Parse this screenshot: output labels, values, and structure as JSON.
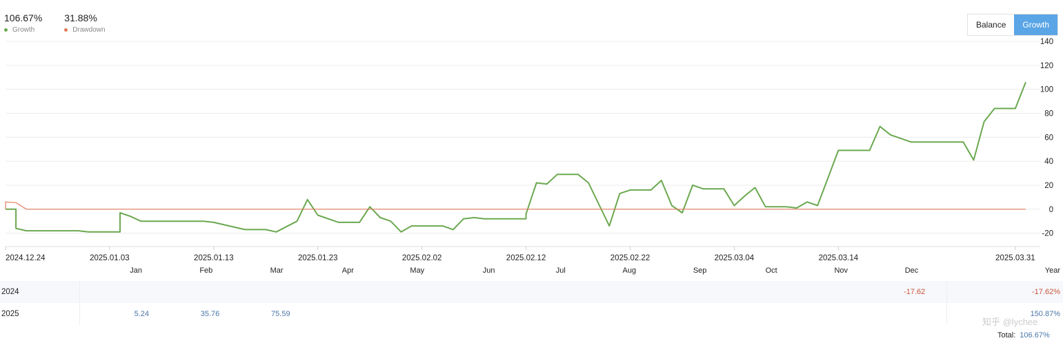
{
  "stats": [
    {
      "value": "106.67%",
      "label": "Growth",
      "color": "#6aa84f"
    },
    {
      "value": "31.88%",
      "label": "Drawdown",
      "color": "#e07b5a"
    }
  ],
  "toggle": {
    "balance": "Balance",
    "growth": "Growth",
    "active": "growth",
    "accent": "#5aa5e6"
  },
  "chart_data": {
    "type": "line",
    "title": "",
    "xlabel": "",
    "ylabel": "",
    "ylim": [
      -30,
      140
    ],
    "yticks": [
      140,
      120,
      100,
      80,
      60,
      40,
      20,
      0,
      -20
    ],
    "xtick_labels": [
      "2024.12.24",
      "2025.01.03",
      "2025.01.13",
      "2025.01.23",
      "2025.02.02",
      "2025.02.12",
      "2025.02.22",
      "2025.03.04",
      "2025.03.14",
      "2025.03.31"
    ],
    "xlim": [
      "2024.12.24",
      "2025.04.01"
    ],
    "grid": true,
    "series": [
      {
        "color": "#6aa84f",
        "points": [
          [
            "2024.12.24",
            0
          ],
          [
            "2024.12.25",
            0
          ],
          [
            "2024.12.25",
            -16
          ],
          [
            "2024.12.26",
            -18
          ],
          [
            "2024.12.31",
            -18
          ],
          [
            "2025.01.01",
            -19
          ],
          [
            "2025.01.04",
            -19
          ],
          [
            "2025.01.04",
            -3
          ],
          [
            "2025.01.05",
            -6
          ],
          [
            "2025.01.06",
            -10
          ],
          [
            "2025.01.12",
            -10
          ],
          [
            "2025.01.13",
            -11
          ],
          [
            "2025.01.15",
            -15
          ],
          [
            "2025.01.16",
            -17
          ],
          [
            "2025.01.18",
            -17
          ],
          [
            "2025.01.19",
            -19
          ],
          [
            "2025.01.21",
            -10
          ],
          [
            "2025.01.22",
            8
          ],
          [
            "2025.01.23",
            -5
          ],
          [
            "2025.01.25",
            -11
          ],
          [
            "2025.01.27",
            -11
          ],
          [
            "2025.01.28",
            2
          ],
          [
            "2025.01.29",
            -7
          ],
          [
            "2025.01.30",
            -10
          ],
          [
            "2025.01.31",
            -19
          ],
          [
            "2025.02.01",
            -14
          ],
          [
            "2025.02.02",
            -14
          ],
          [
            "2025.02.04",
            -14
          ],
          [
            "2025.02.05",
            -17
          ],
          [
            "2025.02.06",
            -8
          ],
          [
            "2025.02.07",
            -7
          ],
          [
            "2025.02.08",
            -8
          ],
          [
            "2025.02.11",
            -8
          ],
          [
            "2025.02.12",
            -8
          ],
          [
            "2025.02.12",
            -4
          ],
          [
            "2025.02.13",
            22
          ],
          [
            "2025.02.14",
            21
          ],
          [
            "2025.02.15",
            29
          ],
          [
            "2025.02.17",
            29
          ],
          [
            "2025.02.18",
            22
          ],
          [
            "2025.02.20",
            -14
          ],
          [
            "2025.02.21",
            13
          ],
          [
            "2025.02.22",
            16
          ],
          [
            "2025.02.24",
            16
          ],
          [
            "2025.02.25",
            24
          ],
          [
            "2025.02.26",
            3
          ],
          [
            "2025.02.27",
            -3
          ],
          [
            "2025.02.28",
            20
          ],
          [
            "2025.03.01",
            17
          ],
          [
            "2025.03.02",
            17
          ],
          [
            "2025.03.03",
            17
          ],
          [
            "2025.03.04",
            3
          ],
          [
            "2025.03.05",
            11
          ],
          [
            "2025.03.06",
            18
          ],
          [
            "2025.03.07",
            2
          ],
          [
            "2025.03.09",
            2
          ],
          [
            "2025.03.10",
            1
          ],
          [
            "2025.03.11",
            6
          ],
          [
            "2025.03.12",
            3
          ],
          [
            "2025.03.13",
            26
          ],
          [
            "2025.03.14",
            49
          ],
          [
            "2025.03.17",
            49
          ],
          [
            "2025.03.18",
            69
          ],
          [
            "2025.03.19",
            62
          ],
          [
            "2025.03.21",
            56
          ],
          [
            "2025.03.26",
            56
          ],
          [
            "2025.03.27",
            41
          ],
          [
            "2025.03.28",
            73
          ],
          [
            "2025.03.29",
            84
          ],
          [
            "2025.03.31",
            84
          ],
          [
            "2025.04.01",
            106
          ]
        ]
      },
      {
        "color": "#e07b5a",
        "points": [
          [
            "2024.12.24",
            0
          ],
          [
            "2024.12.24",
            6
          ],
          [
            "2024.12.25",
            5.5
          ],
          [
            "2024.12.26",
            0
          ],
          [
            "2025.04.01",
            0
          ]
        ]
      }
    ]
  },
  "table": {
    "months": [
      "Jan",
      "Feb",
      "Mar",
      "Apr",
      "May",
      "Jun",
      "Jul",
      "Aug",
      "Sep",
      "Oct",
      "Nov",
      "Dec"
    ],
    "year_label": "Year",
    "rows": [
      {
        "year": "2024",
        "values": [
          "",
          "",
          "",
          "",
          "",
          "",
          "",
          "",
          "",
          "",
          "",
          "-17.62"
        ],
        "total": "-17.62%"
      },
      {
        "year": "2025",
        "values": [
          "5.24",
          "35.76",
          "75.59",
          "",
          "",
          "",
          "",
          "",
          "",
          "",
          "",
          ""
        ],
        "total": "150.87%"
      }
    ],
    "total_label": "Total:",
    "total_value": "106.67%"
  },
  "watermark": "知乎 @lychee"
}
